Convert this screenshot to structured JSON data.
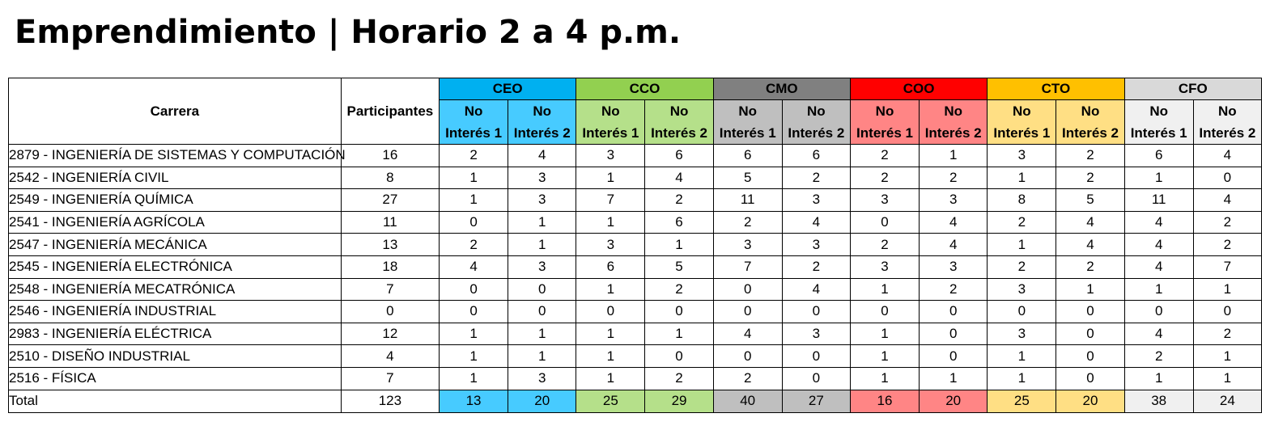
{
  "title": "Emprendimiento | Horario 2 a 4 p.m.",
  "headers": {
    "carrera": "Carrera",
    "participantes": "Participantes",
    "sub_line1": "No",
    "sub_line2_1": "Interés 1",
    "sub_line2_2": "Interés 2"
  },
  "groups": [
    {
      "label": "CEO",
      "header_color": "#00B0F0",
      "cell_color": "#47CBFF"
    },
    {
      "label": "CCO",
      "header_color": "#92D050",
      "cell_color": "#B5E08A"
    },
    {
      "label": "CMO",
      "header_color": "#808080",
      "cell_color": "#BFBFBF"
    },
    {
      "label": "COO",
      "header_color": "#FF0000",
      "cell_color": "#FF8585"
    },
    {
      "label": "CTO",
      "header_color": "#FFC000",
      "cell_color": "#FFDF84"
    },
    {
      "label": "CFO",
      "header_color": "#D9D9D9",
      "cell_color": "#F0F0F0"
    }
  ],
  "rows": [
    {
      "carrera": "2879 - INGENIERÍA DE SISTEMAS Y COMPUTACIÓN",
      "participantes": "16",
      "values": [
        "2",
        "4",
        "3",
        "6",
        "6",
        "6",
        "2",
        "1",
        "3",
        "2",
        "6",
        "4"
      ]
    },
    {
      "carrera": "2542 - INGENIERÍA CIVIL",
      "participantes": "8",
      "values": [
        "1",
        "3",
        "1",
        "4",
        "5",
        "2",
        "2",
        "2",
        "1",
        "2",
        "1",
        "0"
      ]
    },
    {
      "carrera": "2549 - INGENIERÍA QUÍMICA",
      "participantes": "27",
      "values": [
        "1",
        "3",
        "7",
        "2",
        "11",
        "3",
        "3",
        "3",
        "8",
        "5",
        "11",
        "4"
      ]
    },
    {
      "carrera": "2541 - INGENIERÍA AGRÍCOLA",
      "participantes": "11",
      "values": [
        "0",
        "1",
        "1",
        "6",
        "2",
        "4",
        "0",
        "4",
        "2",
        "4",
        "4",
        "2"
      ]
    },
    {
      "carrera": "2547 - INGENIERÍA MECÁNICA",
      "participantes": "13",
      "values": [
        "2",
        "1",
        "3",
        "1",
        "3",
        "3",
        "2",
        "4",
        "1",
        "4",
        "4",
        "2"
      ]
    },
    {
      "carrera": "2545 - INGENIERÍA ELECTRÓNICA",
      "participantes": "18",
      "values": [
        "4",
        "3",
        "6",
        "5",
        "7",
        "2",
        "3",
        "3",
        "2",
        "2",
        "4",
        "7"
      ]
    },
    {
      "carrera": "2548 - INGENIERÍA MECATRÓNICA",
      "participantes": "7",
      "values": [
        "0",
        "0",
        "1",
        "2",
        "0",
        "4",
        "1",
        "2",
        "3",
        "1",
        "1",
        "1"
      ]
    },
    {
      "carrera": "2546 - INGENIERÍA INDUSTRIAL",
      "participantes": "0",
      "values": [
        "0",
        "0",
        "0",
        "0",
        "0",
        "0",
        "0",
        "0",
        "0",
        "0",
        "0",
        "0"
      ]
    },
    {
      "carrera": "2983 - INGENIERÍA ELÉCTRICA",
      "participantes": "12",
      "values": [
        "1",
        "1",
        "1",
        "1",
        "4",
        "3",
        "1",
        "0",
        "3",
        "0",
        "4",
        "2"
      ]
    },
    {
      "carrera": "2510 - DISEÑO INDUSTRIAL",
      "participantes": "4",
      "values": [
        "1",
        "1",
        "1",
        "0",
        "0",
        "0",
        "1",
        "0",
        "1",
        "0",
        "2",
        "1"
      ]
    },
    {
      "carrera": "2516 - FÍSICA",
      "participantes": "7",
      "values": [
        "1",
        "3",
        "1",
        "2",
        "2",
        "0",
        "1",
        "1",
        "1",
        "0",
        "1",
        "1"
      ]
    }
  ],
  "total": {
    "label": "Total",
    "participantes": "123",
    "values": [
      "13",
      "20",
      "25",
      "29",
      "40",
      "27",
      "16",
      "20",
      "25",
      "20",
      "38",
      "24"
    ]
  }
}
